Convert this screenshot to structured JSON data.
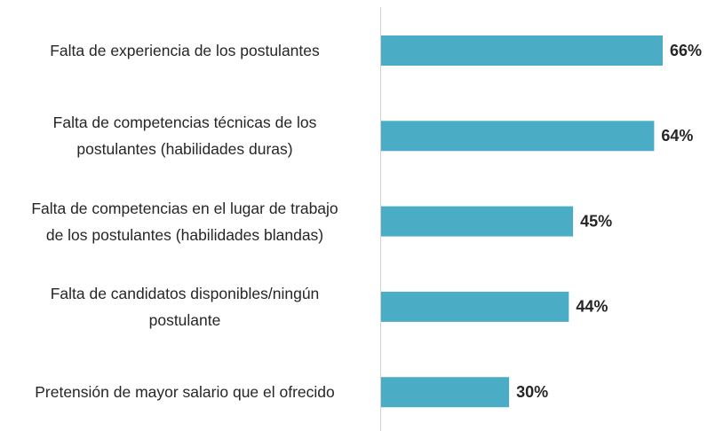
{
  "chart_data": {
    "type": "bar",
    "orientation": "horizontal",
    "categories": [
      "Falta de experiencia de los postulantes",
      "Falta de competencias técnicas de los\npostulantes (habilidades duras)",
      "Falta de competencias en el lugar de trabajo\nde los postulantes (habilidades blandas)",
      "Falta de candidatos disponibles/ningún\npostulante",
      "Pretensión de mayor salario que el ofrecido"
    ],
    "values": [
      66,
      64,
      45,
      44,
      30
    ],
    "value_labels": [
      "66%",
      "64%",
      "45%",
      "44%",
      "30%"
    ],
    "color": "#4bacc6"
  }
}
